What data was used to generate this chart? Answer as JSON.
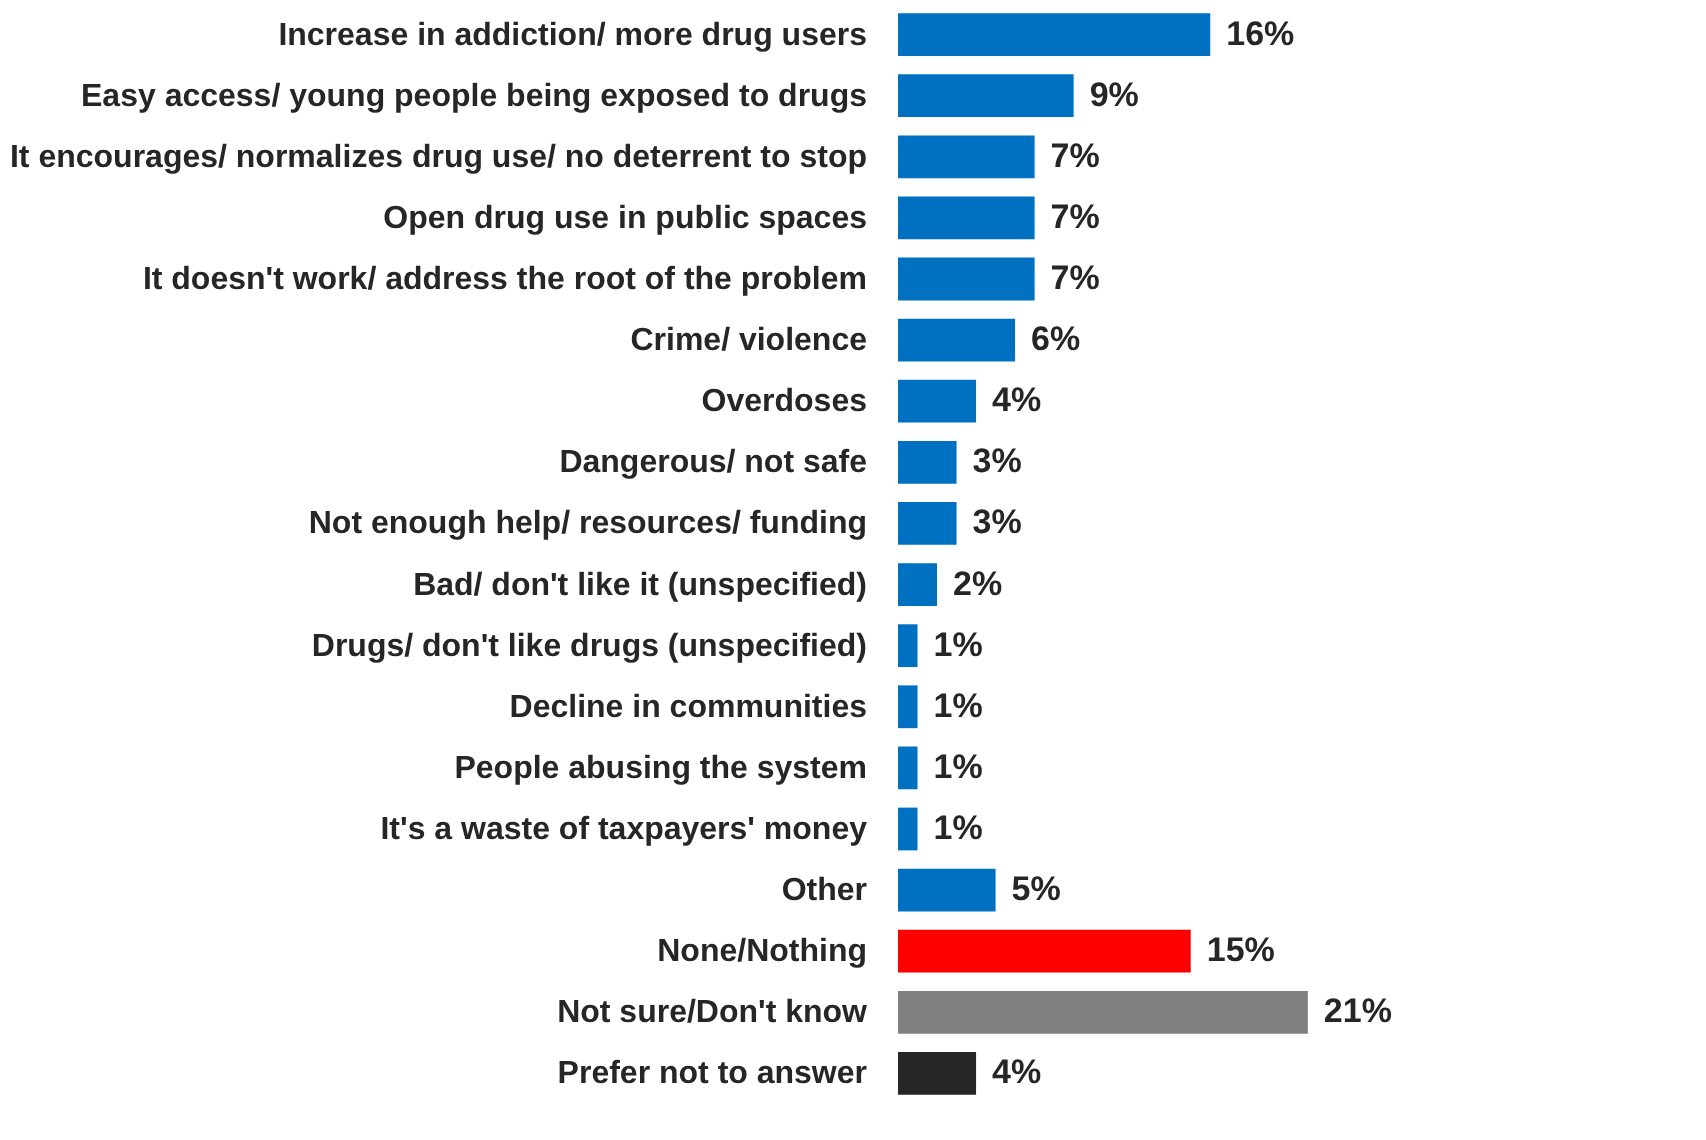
{
  "chart_data": {
    "type": "bar",
    "orientation": "horizontal",
    "data_labels": true,
    "categories": [
      "Increase in addiction/ more drug users",
      "Easy access/ young people being exposed to drugs",
      "It encourages/ normalizes drug use/ no deterrent to stop",
      "Open drug use in public spaces",
      "It doesn't work/ address the root of the problem",
      "Crime/ violence",
      "Overdoses",
      "Dangerous/ not safe",
      "Not enough help/ resources/ funding",
      "Bad/ don't like it (unspecified)",
      "Drugs/ don't like drugs (unspecified)",
      "Decline in communities",
      "People abusing the system",
      "It's a waste of taxpayers' money",
      "Other",
      "None/Nothing",
      "Not sure/Don't know",
      "Prefer not to answer"
    ],
    "values": [
      16,
      9,
      7,
      7,
      7,
      6,
      4,
      3,
      3,
      2,
      1,
      1,
      1,
      1,
      5,
      15,
      21,
      4
    ],
    "value_labels": [
      "16%",
      "9%",
      "7%",
      "7%",
      "7%",
      "6%",
      "4%",
      "3%",
      "3%",
      "2%",
      "1%",
      "1%",
      "1%",
      "1%",
      "5%",
      "15%",
      "21%",
      "4%"
    ],
    "colors": [
      "#0070c0",
      "#0070c0",
      "#0070c0",
      "#0070c0",
      "#0070c0",
      "#0070c0",
      "#0070c0",
      "#0070c0",
      "#0070c0",
      "#0070c0",
      "#0070c0",
      "#0070c0",
      "#0070c0",
      "#0070c0",
      "#0070c0",
      "#ff0000",
      "#808080",
      "#262626"
    ],
    "grid": false
  }
}
